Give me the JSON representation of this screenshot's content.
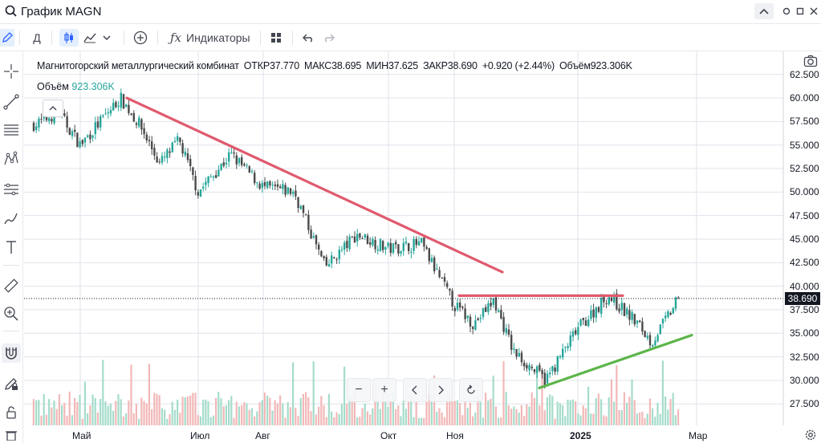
{
  "window": {
    "title": "График MAGN"
  },
  "toolbar": {
    "interval": "Д",
    "indicators_label": "Индикаторы"
  },
  "legend": {
    "name": "Магнитогорский металлургический комбинат",
    "open_label": "ОТКР",
    "open": "37.770",
    "high_label": "МАКС",
    "high": "38.695",
    "low_label": "МИН",
    "low": "37.625",
    "close_label": "ЗАКР",
    "close": "38.690",
    "change": "+0.920 (+2.44%)",
    "volume_label": "Объём",
    "volume": "923.306K"
  },
  "price_axis": {
    "labels": [
      "62.500",
      "60.000",
      "57.500",
      "55.000",
      "52.500",
      "50.000",
      "47.500",
      "45.000",
      "42.500",
      "40.000",
      "37.500",
      "35.000",
      "32.500",
      "30.000",
      "27.500"
    ],
    "last_price": "38.690"
  },
  "time_axis": {
    "labels": [
      {
        "text": "Май"
      },
      {
        "text": "Июл"
      },
      {
        "text": "Авг"
      },
      {
        "text": "Окт"
      },
      {
        "text": "Ноя"
      },
      {
        "text": "2025"
      },
      {
        "text": "Мар"
      }
    ]
  },
  "colors": {
    "up": "#26a69a",
    "down": "#4a4a4a",
    "vol_up": "#a5dccb",
    "vol_down": "#f2b8b8",
    "downtrend": "#e05a6e",
    "resistance": "#e05a6e",
    "uptrend": "#5cb54a",
    "grid": "#e0e3eb"
  },
  "icons": {
    "top": [
      "search-icon",
      "collapse-icon",
      "minimize-icon",
      "maximize-icon",
      "close-icon"
    ],
    "toolbar": [
      "pencil-icon",
      "candles-icon",
      "line-chart-icon",
      "chevron-down-icon",
      "add-circle-icon",
      "fx-icon",
      "layout-icon",
      "undo-icon",
      "redo-icon",
      "camera-icon"
    ],
    "left": [
      "crosshair-icon",
      "trend-line-icon",
      "fib-icon",
      "pattern-icon",
      "prediction-icon",
      "brush-icon",
      "text-icon",
      "ruler-icon",
      "zoom-in-icon",
      "magnet-icon",
      "lock-drawing-icon",
      "lock-icon",
      "trash-icon"
    ],
    "zoom": [
      "zoom-out-icon",
      "zoom-in-icon",
      "scroll-left-icon",
      "scroll-right-icon",
      "reset-icon"
    ]
  },
  "chart_data": {
    "type": "candlestick",
    "symbol": "MAGN",
    "x_range": [
      "Апр 2024",
      "Мар 2025"
    ],
    "y_range": [
      26.5,
      63.5
    ],
    "close_path": [
      {
        "x": "Апр",
        "y": 57.2
      },
      {
        "x": "Апр",
        "y": 58.5
      },
      {
        "x": "Май",
        "y": 55.0
      },
      {
        "x": "Май",
        "y": 57.5
      },
      {
        "x": "Май",
        "y": 60.0
      },
      {
        "x": "Июн",
        "y": 57.0
      },
      {
        "x": "Июн",
        "y": 53.0
      },
      {
        "x": "Июн",
        "y": 55.5
      },
      {
        "x": "Июл",
        "y": 50.0
      },
      {
        "x": "Июл",
        "y": 54.0
      },
      {
        "x": "Авг",
        "y": 50.5
      },
      {
        "x": "Авг",
        "y": 50.0
      },
      {
        "x": "Сен",
        "y": 42.0
      },
      {
        "x": "Сен",
        "y": 45.5
      },
      {
        "x": "Окт",
        "y": 44.0
      },
      {
        "x": "Окт",
        "y": 44.5
      },
      {
        "x": "Ноя",
        "y": 38.0
      },
      {
        "x": "Ноя",
        "y": 36.0
      },
      {
        "x": "Ноя",
        "y": 38.5
      },
      {
        "x": "Дек",
        "y": 33.0
      },
      {
        "x": "Дек",
        "y": 30.0
      },
      {
        "x": "Янв",
        "y": 35.5
      },
      {
        "x": "Янв",
        "y": 39.0
      },
      {
        "x": "Фев",
        "y": 36.0
      },
      {
        "x": "Фев",
        "y": 34.0
      },
      {
        "x": "Фев",
        "y": 38.69
      }
    ],
    "trendlines": [
      {
        "name": "downtrend",
        "from": {
          "x": "Май",
          "y": 60.0
        },
        "to": {
          "x": "Ноя",
          "y": 41.5
        }
      },
      {
        "name": "resistance",
        "from": {
          "x": "Ноя",
          "y": 39.0
        },
        "to": {
          "x": "Фев",
          "y": 39.0
        }
      },
      {
        "name": "uptrend",
        "from": {
          "x": "Дек",
          "y": 29.2
        },
        "to": {
          "x": "Фев",
          "y": 34.8
        }
      }
    ]
  }
}
